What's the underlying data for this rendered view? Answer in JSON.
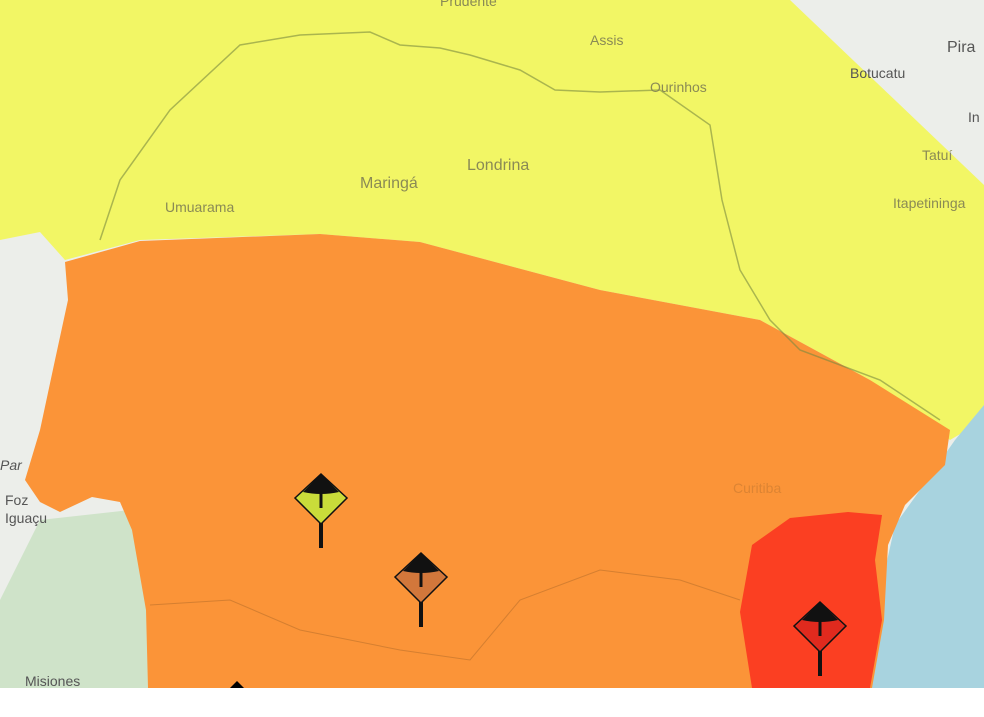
{
  "map": {
    "alert_colors": {
      "yellow": "#f2f660",
      "orange": "#fb9438",
      "red": "#fb3f22"
    },
    "basemap_colors": {
      "land": "#eceeea",
      "ocean": "#a8d3df",
      "forest": "#cfe3c9"
    },
    "labels": {
      "prudente": "Prudente",
      "assis": "Assis",
      "ourinhos": "Ourinhos",
      "botucatu": "Botucatu",
      "piracicaba": "Pira",
      "indaiatuba": "In",
      "tatui": "Tatuí",
      "itapetininga": "Itapetininga",
      "maringa": "Maringá",
      "londrina": "Londrina",
      "umuarama": "Umuarama",
      "foz_line1": "Foz",
      "foz_line2": "Iguaçu",
      "paraguay": "Par",
      "misiones": "Misiones",
      "curitiba": "Curitiba"
    },
    "markers": [
      {
        "name": "yellow-alert-marker",
        "fill": "#c9dc3a"
      },
      {
        "name": "orange-alert-marker",
        "fill": "#d2773b"
      },
      {
        "name": "red-alert-marker",
        "fill": "#e02a1e"
      },
      {
        "name": "partial-alert-marker",
        "fill": "#000000"
      }
    ]
  }
}
